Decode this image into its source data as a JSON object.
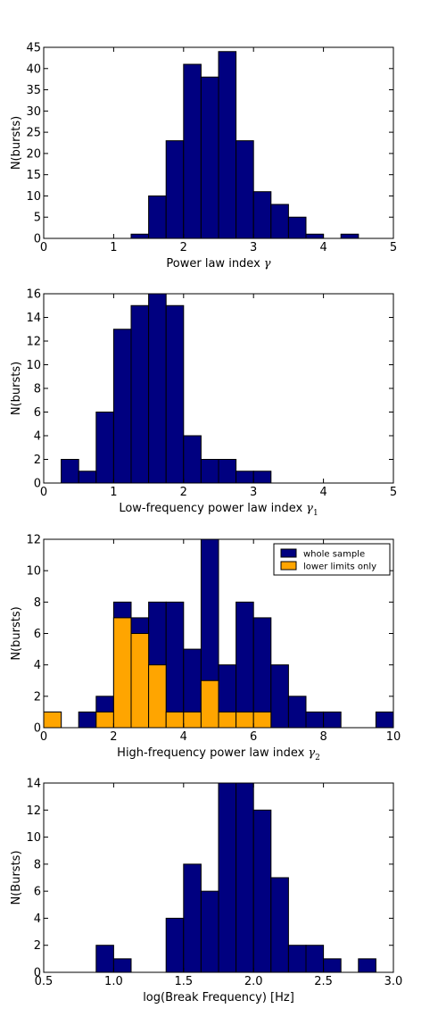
{
  "chart_data": [
    {
      "type": "histogram",
      "xlabel": "Power law index",
      "xlabel_symbol": "γ",
      "xlabel_sub": "",
      "ylabel": "N(bursts)",
      "xlim": [
        0,
        5
      ],
      "ylim": [
        0,
        45
      ],
      "xticks": [
        0,
        1,
        2,
        3,
        4,
        5
      ],
      "xtick_labels": [
        "0",
        "1",
        "2",
        "3",
        "4",
        "5"
      ],
      "yticks": [
        0,
        5,
        10,
        15,
        20,
        25,
        30,
        35,
        40,
        45
      ],
      "ytick_labels": [
        "0",
        "5",
        "10",
        "15",
        "20",
        "25",
        "30",
        "35",
        "40",
        "45"
      ],
      "grid": false,
      "series": [
        {
          "color": "#000080",
          "bars": [
            {
              "x0": 1.25,
              "x1": 1.5,
              "value": 1
            },
            {
              "x0": 1.5,
              "x1": 1.75,
              "value": 10
            },
            {
              "x0": 1.75,
              "x1": 2.0,
              "value": 23
            },
            {
              "x0": 2.0,
              "x1": 2.25,
              "value": 41
            },
            {
              "x0": 2.25,
              "x1": 2.5,
              "value": 38
            },
            {
              "x0": 2.5,
              "x1": 2.75,
              "value": 44
            },
            {
              "x0": 2.75,
              "x1": 3.0,
              "value": 23
            },
            {
              "x0": 3.0,
              "x1": 3.25,
              "value": 11
            },
            {
              "x0": 3.25,
              "x1": 3.5,
              "value": 8
            },
            {
              "x0": 3.5,
              "x1": 3.75,
              "value": 5
            },
            {
              "x0": 3.75,
              "x1": 4.0,
              "value": 1
            },
            {
              "x0": 4.25,
              "x1": 4.5,
              "value": 1
            }
          ]
        }
      ]
    },
    {
      "type": "histogram",
      "xlabel": "Low-frequency power law index",
      "xlabel_symbol": "γ",
      "xlabel_sub": "1",
      "ylabel": "N(bursts)",
      "xlim": [
        0,
        5
      ],
      "ylim": [
        0,
        16
      ],
      "xticks": [
        0,
        1,
        2,
        3,
        4,
        5
      ],
      "xtick_labels": [
        "0",
        "1",
        "2",
        "3",
        "4",
        "5"
      ],
      "yticks": [
        0,
        2,
        4,
        6,
        8,
        10,
        12,
        14,
        16
      ],
      "ytick_labels": [
        "0",
        "2",
        "4",
        "6",
        "8",
        "10",
        "12",
        "14",
        "16"
      ],
      "grid": false,
      "series": [
        {
          "color": "#000080",
          "bars": [
            {
              "x0": 0.25,
              "x1": 0.5,
              "value": 2
            },
            {
              "x0": 0.5,
              "x1": 0.75,
              "value": 1
            },
            {
              "x0": 0.75,
              "x1": 1.0,
              "value": 6
            },
            {
              "x0": 1.0,
              "x1": 1.25,
              "value": 13
            },
            {
              "x0": 1.25,
              "x1": 1.5,
              "value": 15
            },
            {
              "x0": 1.5,
              "x1": 1.75,
              "value": 16
            },
            {
              "x0": 1.75,
              "x1": 2.0,
              "value": 15
            },
            {
              "x0": 2.0,
              "x1": 2.25,
              "value": 4
            },
            {
              "x0": 2.25,
              "x1": 2.5,
              "value": 2
            },
            {
              "x0": 2.5,
              "x1": 2.75,
              "value": 2
            },
            {
              "x0": 2.75,
              "x1": 3.0,
              "value": 1
            },
            {
              "x0": 3.0,
              "x1": 3.25,
              "value": 1
            }
          ]
        }
      ]
    },
    {
      "type": "histogram",
      "xlabel": "High-frequency power law index",
      "xlabel_symbol": "γ",
      "xlabel_sub": "2",
      "ylabel": "N(bursts)",
      "xlim": [
        0,
        10
      ],
      "ylim": [
        0,
        12
      ],
      "xticks": [
        0,
        2,
        4,
        6,
        8,
        10
      ],
      "xtick_labels": [
        "0",
        "2",
        "4",
        "6",
        "8",
        "10"
      ],
      "yticks": [
        0,
        2,
        4,
        6,
        8,
        10,
        12
      ],
      "ytick_labels": [
        "0",
        "2",
        "4",
        "6",
        "8",
        "10",
        "12"
      ],
      "grid": false,
      "legend_position": "top-right",
      "series": [
        {
          "name": "whole sample",
          "color": "#000080",
          "bars": [
            {
              "x0": 0.0,
              "x1": 0.5,
              "value": 1
            },
            {
              "x0": 1.0,
              "x1": 1.5,
              "value": 1
            },
            {
              "x0": 1.5,
              "x1": 2.0,
              "value": 2
            },
            {
              "x0": 2.0,
              "x1": 2.5,
              "value": 8
            },
            {
              "x0": 2.5,
              "x1": 3.0,
              "value": 7
            },
            {
              "x0": 3.0,
              "x1": 3.5,
              "value": 8
            },
            {
              "x0": 3.5,
              "x1": 4.0,
              "value": 8
            },
            {
              "x0": 4.0,
              "x1": 4.5,
              "value": 5
            },
            {
              "x0": 4.5,
              "x1": 5.0,
              "value": 12
            },
            {
              "x0": 5.0,
              "x1": 5.5,
              "value": 4
            },
            {
              "x0": 5.5,
              "x1": 6.0,
              "value": 8
            },
            {
              "x0": 6.0,
              "x1": 6.5,
              "value": 7
            },
            {
              "x0": 6.5,
              "x1": 7.0,
              "value": 4
            },
            {
              "x0": 7.0,
              "x1": 7.5,
              "value": 2
            },
            {
              "x0": 7.5,
              "x1": 8.0,
              "value": 1
            },
            {
              "x0": 8.0,
              "x1": 8.5,
              "value": 1
            },
            {
              "x0": 9.5,
              "x1": 10.0,
              "value": 1
            }
          ]
        },
        {
          "name": "lower limits only",
          "color": "#ffa500",
          "bars": [
            {
              "x0": 0.0,
              "x1": 0.5,
              "value": 1
            },
            {
              "x0": 1.5,
              "x1": 2.0,
              "value": 1
            },
            {
              "x0": 2.0,
              "x1": 2.5,
              "value": 7
            },
            {
              "x0": 2.5,
              "x1": 3.0,
              "value": 6
            },
            {
              "x0": 3.0,
              "x1": 3.5,
              "value": 4
            },
            {
              "x0": 3.5,
              "x1": 4.0,
              "value": 1
            },
            {
              "x0": 4.0,
              "x1": 4.5,
              "value": 1
            },
            {
              "x0": 4.5,
              "x1": 5.0,
              "value": 3
            },
            {
              "x0": 5.0,
              "x1": 5.5,
              "value": 1
            },
            {
              "x0": 5.5,
              "x1": 6.0,
              "value": 1
            },
            {
              "x0": 6.0,
              "x1": 6.5,
              "value": 1
            }
          ]
        }
      ]
    },
    {
      "type": "histogram",
      "xlabel": "log(Break Frequency) [Hz]",
      "xlabel_symbol": "",
      "xlabel_sub": "",
      "ylabel": "N(Bursts)",
      "xlim": [
        0.5,
        3.0
      ],
      "ylim": [
        0,
        14
      ],
      "xticks": [
        0.5,
        1.0,
        1.5,
        2.0,
        2.5,
        3.0
      ],
      "xtick_labels": [
        "0.5",
        "1.0",
        "1.5",
        "2.0",
        "2.5",
        "3.0"
      ],
      "yticks": [
        0,
        2,
        4,
        6,
        8,
        10,
        12,
        14
      ],
      "ytick_labels": [
        "0",
        "2",
        "4",
        "6",
        "8",
        "10",
        "12",
        "14"
      ],
      "grid": false,
      "series": [
        {
          "color": "#000080",
          "bars": [
            {
              "x0": 0.875,
              "x1": 1.0,
              "value": 2
            },
            {
              "x0": 1.0,
              "x1": 1.125,
              "value": 1
            },
            {
              "x0": 1.375,
              "x1": 1.5,
              "value": 4
            },
            {
              "x0": 1.5,
              "x1": 1.625,
              "value": 8
            },
            {
              "x0": 1.625,
              "x1": 1.75,
              "value": 6
            },
            {
              "x0": 1.75,
              "x1": 1.875,
              "value": 14
            },
            {
              "x0": 1.875,
              "x1": 2.0,
              "value": 14
            },
            {
              "x0": 2.0,
              "x1": 2.125,
              "value": 12
            },
            {
              "x0": 2.125,
              "x1": 2.25,
              "value": 7
            },
            {
              "x0": 2.25,
              "x1": 2.375,
              "value": 2
            },
            {
              "x0": 2.375,
              "x1": 2.5,
              "value": 2
            },
            {
              "x0": 2.5,
              "x1": 2.625,
              "value": 1
            },
            {
              "x0": 2.75,
              "x1": 2.875,
              "value": 1
            }
          ]
        }
      ]
    }
  ]
}
